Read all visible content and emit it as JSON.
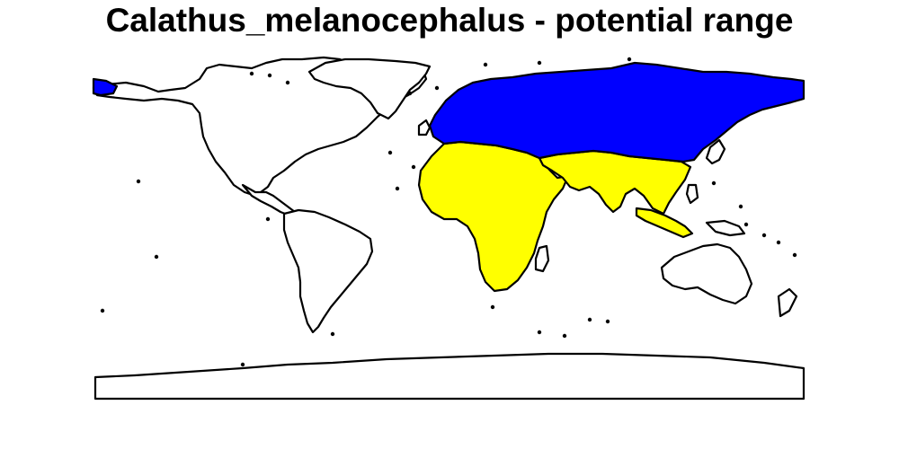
{
  "title": "Calathus_melanocephalus - potential range",
  "colors": {
    "background": "#ffffff",
    "outline": "#000000",
    "range_blue": "#0000ff",
    "range_yellow": "#ffff00"
  }
}
